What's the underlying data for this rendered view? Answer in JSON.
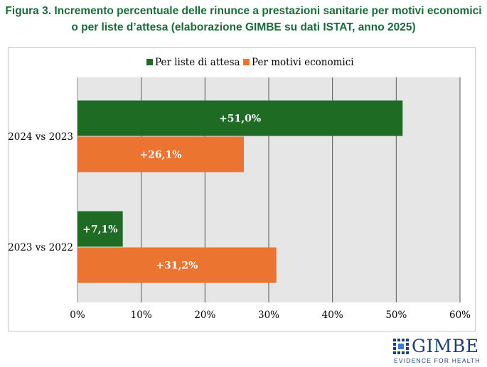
{
  "title_line1": "Figura 3. Incremento percentuale delle rinunce a prestazioni sanitarie per motivi economici",
  "title_line2": "o per liste d’attesa (elaborazione GIMBE su dati ISTAT, anno 2025)",
  "logo": {
    "word": "GIMBE",
    "tagline": "EVIDENCE FOR HEALTH",
    "color": "#1c3f7a"
  },
  "colors": {
    "title": "#1a6b3a",
    "plot_bg": "#e6e6e6",
    "grid": "#555555"
  },
  "chart_data": {
    "type": "bar",
    "orientation": "horizontal",
    "categories": [
      "2024 vs 2023",
      "2023 vs 2022"
    ],
    "series": [
      {
        "name": "Per liste di attesa",
        "color": "#1e6b23",
        "values": [
          51.0,
          7.1
        ],
        "labels": [
          "+51,0%",
          "+7,1%"
        ]
      },
      {
        "name": "Per motivi economici",
        "color": "#ec7431",
        "values": [
          26.1,
          31.2
        ],
        "labels": [
          "+26,1%",
          "+31,2%"
        ]
      }
    ],
    "xlim": [
      0,
      60
    ],
    "xticks": [
      0,
      10,
      20,
      30,
      40,
      50,
      60
    ],
    "xtick_labels": [
      "0%",
      "10%",
      "20%",
      "30%",
      "40%",
      "50%",
      "60%"
    ],
    "grid": true,
    "legend_position": "top-center"
  }
}
